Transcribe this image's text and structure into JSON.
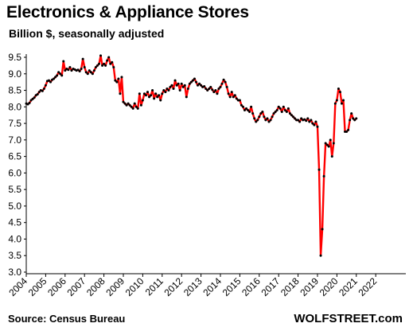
{
  "header": {
    "title": "Electronics & Appliance Stores",
    "subtitle": "Billion $, seasonally adjusted"
  },
  "footer": {
    "source": "Source: Census Bureau",
    "brand": "WOLFSTREET.com"
  },
  "chart_data": {
    "type": "line",
    "title": "Electronics & Appliance Stores",
    "subtitle": "Billion $, seasonally adjusted",
    "xlabel": "",
    "ylabel": "",
    "ylim": [
      3.0,
      9.5
    ],
    "yticks": [
      "3.0",
      "3.5",
      "4.0",
      "4.5",
      "5.0",
      "5.5",
      "6.0",
      "6.5",
      "7.0",
      "7.5",
      "8.0",
      "8.5",
      "9.0",
      "9.5"
    ],
    "xticks": [
      "2004",
      "2005",
      "2006",
      "2007",
      "2008",
      "2009",
      "2010",
      "2011",
      "2012",
      "2013",
      "2014",
      "2015",
      "2016",
      "2017",
      "2018",
      "2019",
      "2020",
      "2021",
      "2022"
    ],
    "grid": false,
    "line_color": "#ff0000",
    "marker_color": "#000000",
    "series": [
      {
        "x_start": "2004-01",
        "frequency": "monthly",
        "values": [
          8.1,
          8.08,
          8.12,
          8.2,
          8.24,
          8.28,
          8.35,
          8.38,
          8.45,
          8.5,
          8.48,
          8.55,
          8.65,
          8.78,
          8.8,
          8.75,
          8.82,
          8.85,
          8.9,
          8.95,
          9.05,
          9.0,
          8.95,
          9.38,
          9.1,
          9.15,
          9.12,
          9.2,
          9.1,
          9.15,
          9.13,
          9.1,
          9.12,
          9.08,
          9.15,
          9.45,
          9.2,
          9.05,
          9.0,
          9.1,
          9.05,
          9.0,
          9.1,
          9.2,
          9.25,
          9.3,
          9.55,
          9.25,
          9.3,
          9.25,
          9.4,
          9.5,
          9.3,
          9.35,
          9.2,
          8.8,
          8.75,
          8.85,
          8.4,
          8.9,
          8.15,
          8.1,
          8.05,
          8.1,
          8.05,
          8.0,
          7.95,
          8.1,
          8.0,
          7.95,
          8.4,
          8.05,
          8.2,
          8.4,
          8.35,
          8.45,
          8.3,
          8.35,
          8.5,
          8.25,
          8.4,
          8.3,
          8.35,
          8.2,
          8.4,
          8.5,
          8.45,
          8.55,
          8.5,
          8.6,
          8.65,
          8.55,
          8.8,
          8.65,
          8.7,
          8.5,
          8.7,
          8.6,
          8.65,
          8.3,
          8.55,
          8.7,
          8.75,
          8.8,
          8.85,
          8.75,
          8.65,
          8.7,
          8.65,
          8.6,
          8.62,
          8.55,
          8.5,
          8.55,
          8.6,
          8.52,
          8.45,
          8.5,
          8.4,
          8.55,
          8.6,
          8.7,
          8.82,
          8.75,
          8.6,
          8.4,
          8.3,
          8.45,
          8.3,
          8.35,
          8.25,
          8.2,
          8.2,
          8.05,
          8.0,
          7.9,
          7.95,
          7.9,
          7.85,
          8.0,
          7.8,
          7.65,
          7.55,
          7.6,
          7.7,
          7.8,
          7.85,
          7.7,
          7.6,
          7.65,
          7.55,
          7.6,
          7.7,
          7.8,
          7.85,
          7.9,
          8.0,
          7.95,
          7.85,
          8.0,
          7.9,
          7.85,
          7.95,
          7.8,
          7.75,
          7.7,
          7.65,
          7.6,
          7.6,
          7.55,
          7.65,
          7.6,
          7.62,
          7.58,
          7.65,
          7.55,
          7.6,
          7.5,
          7.45,
          7.55,
          7.4,
          6.1,
          3.5,
          4.3,
          5.9,
          6.9,
          6.85,
          6.8,
          7.0,
          6.5,
          6.9,
          8.1,
          8.2,
          8.55,
          8.45,
          8.1,
          8.2,
          7.25,
          7.25,
          7.3,
          7.6,
          7.8,
          7.65,
          7.6,
          7.65
        ]
      }
    ]
  }
}
